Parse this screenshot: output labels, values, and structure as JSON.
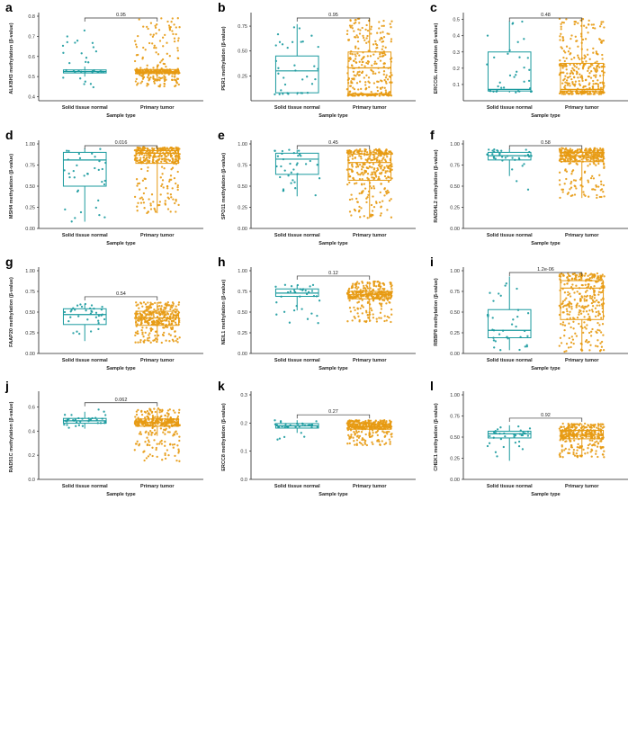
{
  "figure": {
    "x_category_normal": "Solid tissue normal",
    "x_category_tumor": "Primary tumor",
    "colors": {
      "normal": "#1a9a9e",
      "tumor": "#e79a12",
      "axis": "#222222"
    }
  },
  "chart_data": [
    {
      "type": "boxplot",
      "panel": "a",
      "title": "a",
      "ylabel": "ALKBH3 methylation (β-value)",
      "xlabel": "Sample type",
      "categories": [
        "Solid tissue normal",
        "Primary tumor"
      ],
      "ylim": [
        0.38,
        0.8
      ],
      "yticks": [
        "0.4",
        "0.5",
        "0.6",
        "0.7",
        "0.8"
      ],
      "ytick_values": [
        0.4,
        0.5,
        0.6,
        0.7,
        0.8
      ],
      "pvalue": "0.95",
      "series": [
        {
          "name": "Solid tissue normal",
          "color": "#1a9a9e",
          "q1": 0.518,
          "median": 0.525,
          "q3": 0.533,
          "whisker_low": 0.5,
          "whisker_high": 0.55,
          "n_points": 35,
          "spread": [
            0.44,
            0.73
          ]
        },
        {
          "name": "Primary tumor",
          "color": "#e79a12",
          "q1": 0.515,
          "median": 0.523,
          "q3": 0.535,
          "whisker_low": 0.49,
          "whisker_high": 0.56,
          "n_points": 300,
          "spread": [
            0.45,
            0.8
          ]
        }
      ]
    },
    {
      "type": "boxplot",
      "panel": "b",
      "title": "b",
      "ylabel": "PER1 methylation (β-value)",
      "xlabel": "Sample type",
      "categories": [
        "Solid tissue normal",
        "Primary tumor"
      ],
      "ylim": [
        0.0,
        0.85
      ],
      "yticks": [
        "0.25",
        "0.50",
        "0.75"
      ],
      "ytick_values": [
        0.25,
        0.5,
        0.75
      ],
      "pvalue": "0.95",
      "series": [
        {
          "name": "Solid tissue normal",
          "color": "#1a9a9e",
          "q1": 0.08,
          "median": 0.3,
          "q3": 0.45,
          "whisker_low": 0.06,
          "whisker_high": 0.77,
          "n_points": 35,
          "spread": [
            0.06,
            0.77
          ]
        },
        {
          "name": "Primary tumor",
          "color": "#e79a12",
          "q1": 0.07,
          "median": 0.33,
          "q3": 0.49,
          "whisker_low": 0.05,
          "whisker_high": 0.83,
          "n_points": 320,
          "spread": [
            0.05,
            0.83
          ]
        }
      ]
    },
    {
      "type": "boxplot",
      "panel": "c",
      "title": "c",
      "ylabel": "ERCC6L methylation (β-value)",
      "xlabel": "Sample type",
      "categories": [
        "Solid tissue normal",
        "Primary tumor"
      ],
      "ylim": [
        0.0,
        0.52
      ],
      "yticks": [
        "0.1",
        "0.2",
        "0.3",
        "0.4",
        "0.5"
      ],
      "ytick_values": [
        0.1,
        0.2,
        0.3,
        0.4,
        0.5
      ],
      "pvalue": "0.48",
      "series": [
        {
          "name": "Solid tissue normal",
          "color": "#1a9a9e",
          "q1": 0.06,
          "median": 0.07,
          "q3": 0.3,
          "whisker_low": 0.05,
          "whisker_high": 0.49,
          "n_points": 35,
          "spread": [
            0.05,
            0.49
          ]
        },
        {
          "name": "Primary tumor",
          "color": "#e79a12",
          "q1": 0.06,
          "median": 0.07,
          "q3": 0.23,
          "whisker_low": 0.04,
          "whisker_high": 0.51,
          "n_points": 320,
          "spread": [
            0.04,
            0.51
          ]
        }
      ]
    },
    {
      "type": "boxplot",
      "panel": "d",
      "title": "d",
      "ylabel": "MSH4 methylation (β-value)",
      "xlabel": "Sample type",
      "categories": [
        "Solid tissue normal",
        "Primary tumor"
      ],
      "ylim": [
        0.0,
        1.0
      ],
      "yticks": [
        "0.00",
        "0.25",
        "0.50",
        "0.75",
        "1.00"
      ],
      "ytick_values": [
        0.0,
        0.25,
        0.5,
        0.75,
        1.0
      ],
      "pvalue": "0.016",
      "series": [
        {
          "name": "Solid tissue normal",
          "color": "#1a9a9e",
          "q1": 0.5,
          "median": 0.81,
          "q3": 0.9,
          "whisker_low": 0.08,
          "whisker_high": 0.95,
          "n_points": 35,
          "spread": [
            0.08,
            0.95
          ]
        },
        {
          "name": "Primary tumor",
          "color": "#e79a12",
          "q1": 0.77,
          "median": 0.89,
          "q3": 0.92,
          "whisker_low": 0.18,
          "whisker_high": 0.96,
          "n_points": 320,
          "spread": [
            0.18,
            0.96
          ]
        }
      ]
    },
    {
      "type": "boxplot",
      "panel": "e",
      "title": "e",
      "ylabel": "SPO11 methylation (β-value)",
      "xlabel": "Sample type",
      "categories": [
        "Solid tissue normal",
        "Primary tumor"
      ],
      "ylim": [
        0.0,
        1.0
      ],
      "yticks": [
        "0.00",
        "0.25",
        "0.50",
        "0.75",
        "1.00"
      ],
      "ytick_values": [
        0.0,
        0.25,
        0.5,
        0.75,
        1.0
      ],
      "pvalue": "0.45",
      "series": [
        {
          "name": "Solid tissue normal",
          "color": "#1a9a9e",
          "q1": 0.64,
          "median": 0.82,
          "q3": 0.89,
          "whisker_low": 0.38,
          "whisker_high": 0.93,
          "n_points": 35,
          "spread": [
            0.38,
            0.93
          ]
        },
        {
          "name": "Primary tumor",
          "color": "#e79a12",
          "q1": 0.57,
          "median": 0.78,
          "q3": 0.88,
          "whisker_low": 0.12,
          "whisker_high": 0.94,
          "n_points": 320,
          "spread": [
            0.12,
            0.94
          ]
        }
      ]
    },
    {
      "type": "boxplot",
      "panel": "f",
      "title": "f",
      "ylabel": "RAD54L2 methylation (β-value)",
      "xlabel": "Sample type",
      "categories": [
        "Solid tissue normal",
        "Primary tumor"
      ],
      "ylim": [
        0.0,
        1.0
      ],
      "yticks": [
        "0.00",
        "0.25",
        "0.50",
        "0.75",
        "1.00"
      ],
      "ytick_values": [
        0.0,
        0.25,
        0.5,
        0.75,
        1.0
      ],
      "pvalue": "0.58",
      "series": [
        {
          "name": "Solid tissue normal",
          "color": "#1a9a9e",
          "q1": 0.81,
          "median": 0.86,
          "q3": 0.9,
          "whisker_low": 0.62,
          "whisker_high": 0.94,
          "n_points": 35,
          "spread": [
            0.38,
            0.94
          ]
        },
        {
          "name": "Primary tumor",
          "color": "#e79a12",
          "q1": 0.79,
          "median": 0.86,
          "q3": 0.9,
          "whisker_low": 0.36,
          "whisker_high": 0.95,
          "n_points": 320,
          "spread": [
            0.36,
            0.95
          ]
        }
      ]
    },
    {
      "type": "boxplot",
      "panel": "g",
      "title": "g",
      "ylabel": "FAAP20 methylation (β-value)",
      "xlabel": "Sample type",
      "categories": [
        "Solid tissue normal",
        "Primary tumor"
      ],
      "ylim": [
        0.0,
        1.0
      ],
      "yticks": [
        "0.00",
        "0.25",
        "0.50",
        "0.75",
        "1.00"
      ],
      "ytick_values": [
        0.0,
        0.25,
        0.5,
        0.75,
        1.0
      ],
      "pvalue": "0.54",
      "series": [
        {
          "name": "Solid tissue normal",
          "color": "#1a9a9e",
          "q1": 0.35,
          "median": 0.47,
          "q3": 0.54,
          "whisker_low": 0.15,
          "whisker_high": 0.6,
          "n_points": 35,
          "spread": [
            0.15,
            0.6
          ]
        },
        {
          "name": "Primary tumor",
          "color": "#e79a12",
          "q1": 0.34,
          "median": 0.43,
          "q3": 0.51,
          "whisker_low": 0.13,
          "whisker_high": 0.62,
          "n_points": 320,
          "spread": [
            0.13,
            0.62
          ]
        }
      ]
    },
    {
      "type": "boxplot",
      "panel": "h",
      "title": "h",
      "ylabel": "NEIL1 methylation (β-value)",
      "xlabel": "Sample type",
      "categories": [
        "Solid tissue normal",
        "Primary tumor"
      ],
      "ylim": [
        0.0,
        1.0
      ],
      "yticks": [
        "0.00",
        "0.25",
        "0.50",
        "0.75",
        "1.00"
      ],
      "ytick_values": [
        0.0,
        0.25,
        0.5,
        0.75,
        1.0
      ],
      "pvalue": "0.12",
      "series": [
        {
          "name": "Solid tissue normal",
          "color": "#1a9a9e",
          "q1": 0.69,
          "median": 0.73,
          "q3": 0.78,
          "whisker_low": 0.52,
          "whisker_high": 0.83,
          "n_points": 35,
          "spread": [
            0.35,
            0.83
          ]
        },
        {
          "name": "Primary tumor",
          "color": "#e79a12",
          "q1": 0.66,
          "median": 0.71,
          "q3": 0.75,
          "whisker_low": 0.38,
          "whisker_high": 0.87,
          "n_points": 320,
          "spread": [
            0.38,
            0.87
          ]
        }
      ]
    },
    {
      "type": "boxplot",
      "panel": "i",
      "title": "i",
      "ylabel": "RBBP8 methylation (β-value)",
      "xlabel": "Sample type",
      "categories": [
        "Solid tissue normal",
        "Primary tumor"
      ],
      "ylim": [
        0.0,
        1.0
      ],
      "yticks": [
        "0.00",
        "0.25",
        "0.50",
        "0.75",
        "1.00"
      ],
      "ytick_values": [
        0.0,
        0.25,
        0.5,
        0.75,
        1.0
      ],
      "pvalue": "1.2e-06",
      "series": [
        {
          "name": "Solid tissue normal",
          "color": "#1a9a9e",
          "q1": 0.19,
          "median": 0.28,
          "q3": 0.53,
          "whisker_low": 0.04,
          "whisker_high": 0.93,
          "n_points": 35,
          "spread": [
            0.04,
            0.93
          ]
        },
        {
          "name": "Primary tumor",
          "color": "#e79a12",
          "q1": 0.41,
          "median": 0.79,
          "q3": 0.88,
          "whisker_low": 0.02,
          "whisker_high": 0.97,
          "n_points": 320,
          "spread": [
            0.02,
            0.97
          ]
        }
      ]
    },
    {
      "type": "boxplot",
      "panel": "j",
      "title": "j",
      "ylabel": "RAD51C methylation (β-value)",
      "xlabel": "Sample type",
      "categories": [
        "Solid tissue normal",
        "Primary tumor"
      ],
      "ylim": [
        0.0,
        0.7
      ],
      "yticks": [
        "0.0",
        "0.2",
        "0.4",
        "0.6"
      ],
      "ytick_values": [
        0.0,
        0.2,
        0.4,
        0.6
      ],
      "pvalue": "0.062",
      "series": [
        {
          "name": "Solid tissue normal",
          "color": "#1a9a9e",
          "q1": 0.465,
          "median": 0.485,
          "q3": 0.505,
          "whisker_low": 0.42,
          "whisker_high": 0.56,
          "n_points": 35,
          "spread": [
            0.41,
            0.59
          ]
        },
        {
          "name": "Primary tumor",
          "color": "#e79a12",
          "q1": 0.44,
          "median": 0.47,
          "q3": 0.5,
          "whisker_low": 0.36,
          "whisker_high": 0.58,
          "n_points": 320,
          "spread": [
            0.15,
            0.59
          ]
        }
      ]
    },
    {
      "type": "boxplot",
      "panel": "k",
      "title": "k",
      "ylabel": "ERCC8 methylation (β-value)",
      "xlabel": "Sample type",
      "categories": [
        "Solid tissue normal",
        "Primary tumor"
      ],
      "ylim": [
        0.0,
        0.3
      ],
      "yticks": [
        "0.0",
        "0.1",
        "0.2",
        "0.3"
      ],
      "ytick_values": [
        0.0,
        0.1,
        0.2,
        0.3
      ],
      "pvalue": "0.27",
      "series": [
        {
          "name": "Solid tissue normal",
          "color": "#1a9a9e",
          "q1": 0.182,
          "median": 0.19,
          "q3": 0.198,
          "whisker_low": 0.165,
          "whisker_high": 0.21,
          "n_points": 35,
          "spread": [
            0.13,
            0.21
          ]
        },
        {
          "name": "Primary tumor",
          "color": "#e79a12",
          "q1": 0.178,
          "median": 0.187,
          "q3": 0.197,
          "whisker_low": 0.15,
          "whisker_high": 0.21,
          "n_points": 320,
          "spread": [
            0.12,
            0.21
          ]
        }
      ]
    },
    {
      "type": "boxplot",
      "panel": "l",
      "title": "l",
      "ylabel": "CHEK1 methylation (β-value)",
      "xlabel": "Sample type",
      "categories": [
        "Solid tissue normal",
        "Primary tumor"
      ],
      "ylim": [
        0.0,
        1.0
      ],
      "yticks": [
        "0.00",
        "0.25",
        "0.50",
        "0.75",
        "1.00"
      ],
      "ytick_values": [
        0.0,
        0.25,
        0.5,
        0.75,
        1.0
      ],
      "pvalue": "0.92",
      "series": [
        {
          "name": "Solid tissue normal",
          "color": "#1a9a9e",
          "q1": 0.49,
          "median": 0.54,
          "q3": 0.57,
          "whisker_low": 0.22,
          "whisker_high": 0.64,
          "n_points": 35,
          "spread": [
            0.22,
            0.64
          ]
        },
        {
          "name": "Primary tumor",
          "color": "#e79a12",
          "q1": 0.48,
          "median": 0.53,
          "q3": 0.58,
          "whisker_low": 0.26,
          "whisker_high": 0.66,
          "n_points": 320,
          "spread": [
            0.26,
            0.66
          ]
        }
      ]
    }
  ]
}
